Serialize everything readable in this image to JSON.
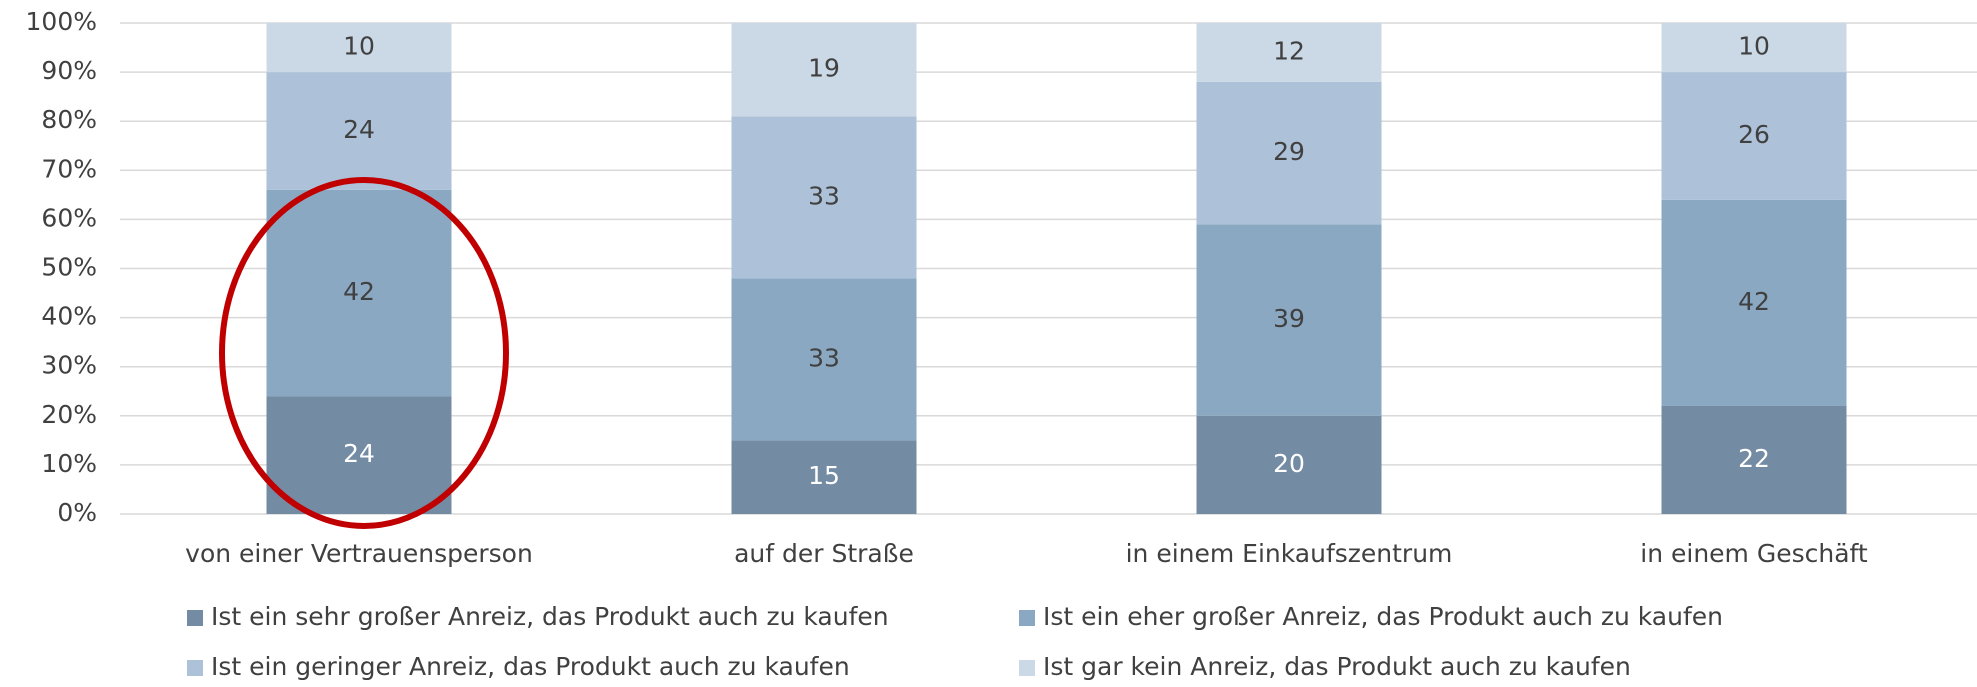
{
  "chart_data": {
    "type": "bar",
    "stacked": true,
    "categories": [
      "von einer Vertrauensperson",
      "auf der Straße",
      "in einem Einkaufszentrum",
      "in einem Geschäft"
    ],
    "series": [
      {
        "name": "Ist ein sehr großer Anreiz, das Produkt auch zu kaufen",
        "color": "#738ca3",
        "values": [
          24,
          15,
          20,
          22
        ]
      },
      {
        "name": "Ist ein eher großer Anreiz, das Produkt auch zu kaufen",
        "color": "#8aa8c2",
        "values": [
          42,
          33,
          39,
          42
        ]
      },
      {
        "name": "Ist ein geringer Anreiz, das Produkt auch zu kaufen",
        "color": "#adc2d9",
        "values": [
          24,
          33,
          29,
          26
        ]
      },
      {
        "name": "Ist gar kein Anreiz, das Produkt auch zu kaufen",
        "color": "#cbd9e7",
        "values": [
          10,
          19,
          12,
          10
        ]
      }
    ],
    "ylim": [
      0,
      100
    ],
    "yticks": [
      {
        "value": 0,
        "label": "0%"
      },
      {
        "value": 10,
        "label": "10%"
      },
      {
        "value": 20,
        "label": "20%"
      },
      {
        "value": 30,
        "label": "30%"
      },
      {
        "value": 40,
        "label": "40%"
      },
      {
        "value": 50,
        "label": "50%"
      },
      {
        "value": 60,
        "label": "60%"
      },
      {
        "value": 70,
        "label": "70%"
      },
      {
        "value": 80,
        "label": "80%"
      },
      {
        "value": 90,
        "label": "90%"
      },
      {
        "value": 100,
        "label": "100%"
      }
    ],
    "grid": true,
    "legend": "bottom"
  }
}
